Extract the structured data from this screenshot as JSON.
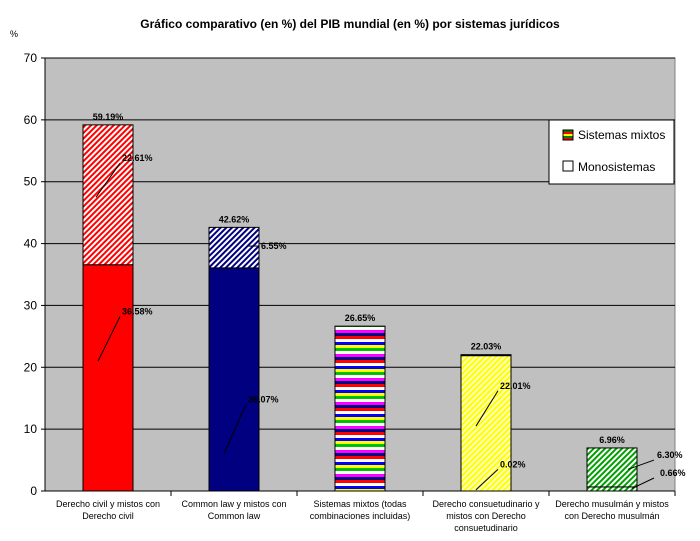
{
  "chart_data": {
    "type": "bar",
    "title": "Gráfico comparativo (en %) del PIB mundial (en %) por sistemas jurídicos",
    "ylabel_mark": "%",
    "ylim": [
      0,
      70
    ],
    "yticks": [
      0,
      10,
      20,
      30,
      40,
      50,
      60,
      70
    ],
    "grid": true,
    "legend_position": "top-right",
    "categories": [
      "Derecho civil y mistos con Derecho civil",
      "Common law y mistos con Common law",
      "Sistemas mixtos (todas combinaciones incluidas)",
      "Derecho consuetudinario y mistos con Derecho consuetudinario",
      "Derecho musulmán y mistos con Derecho musulmán"
    ],
    "category_lines": [
      [
        "Derecho civil y mistos con",
        "Derecho civil"
      ],
      [
        "Common law y mistos con",
        "Common law"
      ],
      [
        "Sistemas mixtos (todas",
        "combinaciones incluidas)"
      ],
      [
        "Derecho consuetudinario y",
        "mistos con Derecho",
        "consuetudinario"
      ],
      [
        "Derecho musulmán y mistos",
        "con Derecho musulmán"
      ]
    ],
    "totals": [
      59.19,
      42.62,
      26.65,
      22.03,
      6.96
    ],
    "total_labels": [
      "59.19%",
      "42.62%",
      "26.65%",
      "22.03%",
      "6.96%"
    ],
    "series": [
      {
        "name": "Monosistemas",
        "values": [
          36.58,
          36.07,
          0,
          22.01,
          0.66
        ],
        "labels": [
          "36.58%",
          "36.07%",
          "",
          "22.01%",
          "0.66%"
        ]
      },
      {
        "name": "Sistemas mixtos",
        "values": [
          22.61,
          6.55,
          26.65,
          0.02,
          6.3
        ],
        "labels": [
          "22.61%",
          "6.55%",
          "",
          "0.02%",
          "6.30%"
        ]
      }
    ],
    "colors": [
      "#ff0000",
      "#000080",
      "#c0c0c0",
      "#ffff80",
      "#00aa00"
    ],
    "legend": [
      "Sistemas mixtos",
      "Monosistemas"
    ]
  }
}
